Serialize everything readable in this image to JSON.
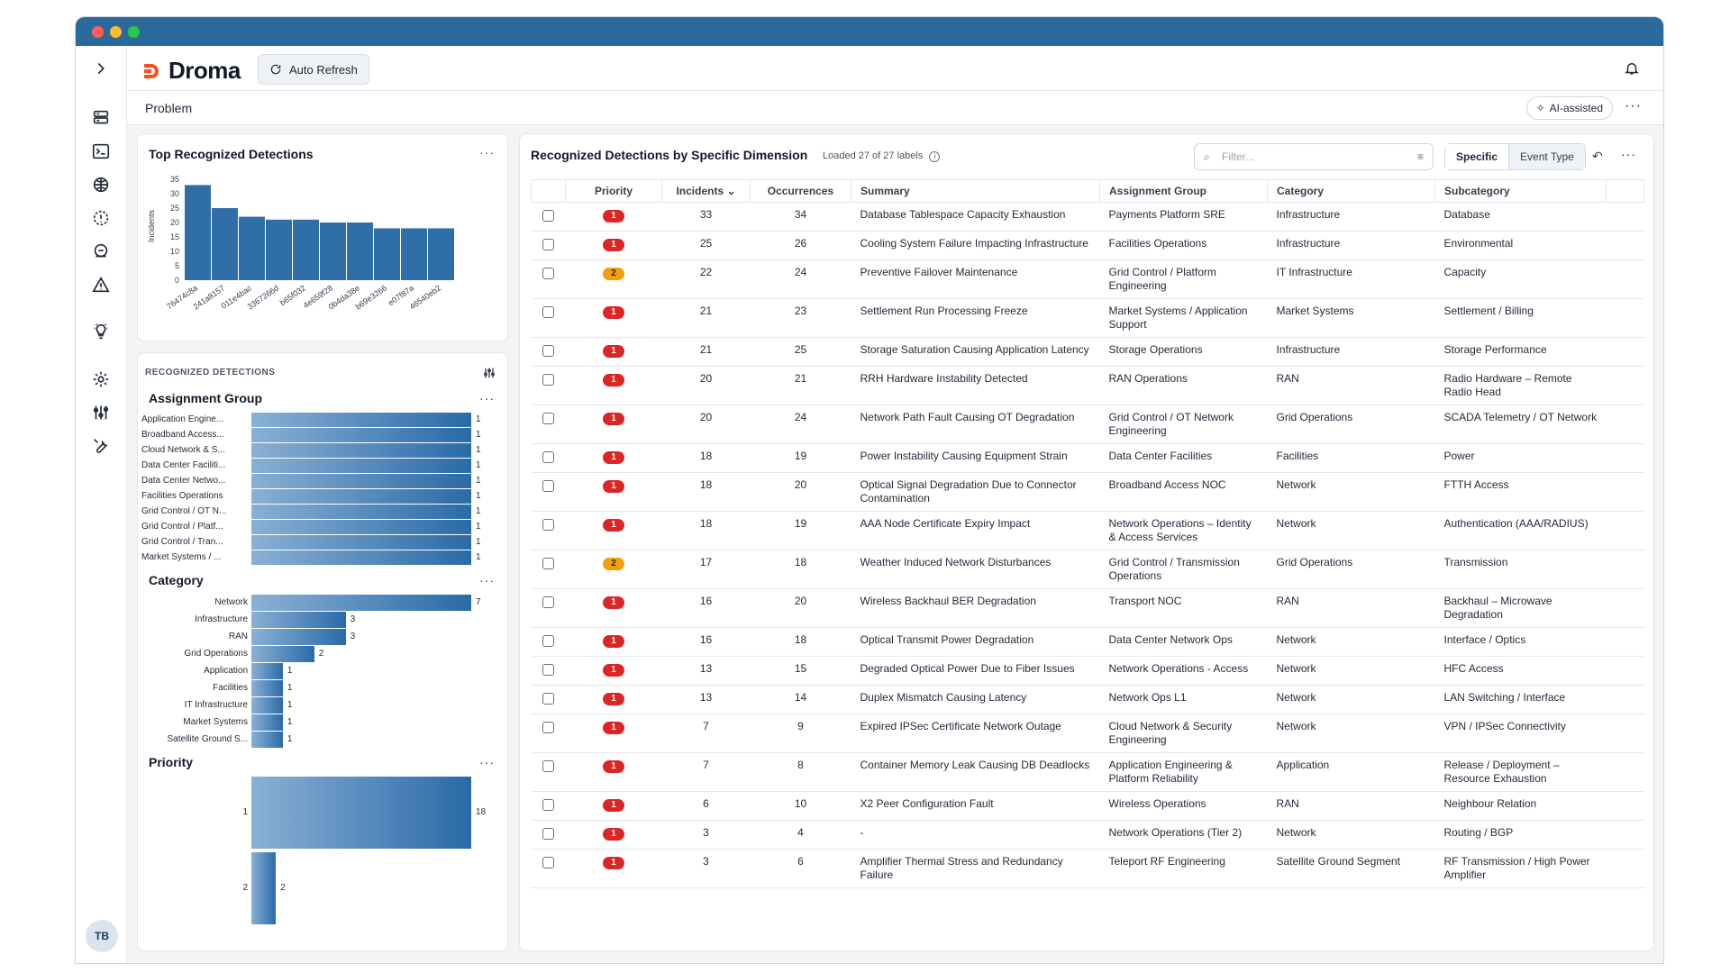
{
  "app": {
    "name": "Droma",
    "auto_refresh": "Auto Refresh",
    "breadcrumb": "Problem",
    "ai_assisted": "AI-assisted",
    "avatar_initials": "TB"
  },
  "top_chart": {
    "title": "Top Recognized Detections",
    "chart_data": {
      "type": "bar",
      "ylabel": "Incidents",
      "ylim": [
        0,
        35
      ],
      "yticks": [
        0,
        5,
        10,
        15,
        20,
        25,
        30,
        35
      ],
      "categories": [
        "76474c8a",
        "241a8157",
        "011e4bac",
        "3367266d",
        "b65f032",
        "4e659f28",
        "0b4da38e",
        "b69e3266",
        "e07f87a",
        "46540eb2"
      ],
      "values": [
        33,
        25,
        22,
        21,
        21,
        20,
        20,
        18,
        18,
        18
      ]
    }
  },
  "recognized": {
    "header": "RECOGNIZED DETECTIONS",
    "assignment_group": {
      "title": "Assignment Group",
      "chart_data": {
        "type": "bar",
        "categories": [
          "Application Engine...",
          "Broadband Access...",
          "Cloud Network & S...",
          "Data Center Faciliti...",
          "Data Center Netwo...",
          "Facilities Operations",
          "Grid Control / OT N...",
          "Grid Control / Platf...",
          "Grid Control / Tran...",
          "Market Systems / ..."
        ],
        "values": [
          1,
          1,
          1,
          1,
          1,
          1,
          1,
          1,
          1,
          1
        ]
      }
    },
    "category": {
      "title": "Category",
      "chart_data": {
        "type": "bar",
        "categories": [
          "Network",
          "Infrastructure",
          "RAN",
          "Grid Operations",
          "Application",
          "Facilities",
          "IT Infrastructure",
          "Market Systems",
          "Satellite Ground S..."
        ],
        "values": [
          7,
          3,
          3,
          2,
          1,
          1,
          1,
          1,
          1
        ]
      }
    },
    "priority": {
      "title": "Priority",
      "chart_data": {
        "type": "bar",
        "categories": [
          "1",
          "2"
        ],
        "values": [
          18,
          2
        ]
      }
    }
  },
  "table": {
    "title": "Recognized Detections by Specific Dimension",
    "subtitle": "Loaded 27 of 27 labels",
    "filter_placeholder": "Filter...",
    "toggle": [
      "Specific",
      "Event Type"
    ],
    "columns": [
      "Priority",
      "Incidents",
      "Occurrences",
      "Summary",
      "Assignment Group",
      "Category",
      "Subcategory"
    ],
    "rows": [
      {
        "priority": "1",
        "incidents": "33",
        "occurrences": "34",
        "summary": "Database Tablespace Capacity Exhaustion",
        "group": "Payments Platform SRE",
        "category": "Infrastructure",
        "subcategory": "Database"
      },
      {
        "priority": "1",
        "incidents": "25",
        "occurrences": "26",
        "summary": "Cooling System Failure Impacting Infrastructure",
        "group": "Facilities Operations",
        "category": "Infrastructure",
        "subcategory": "Environmental"
      },
      {
        "priority": "2",
        "incidents": "22",
        "occurrences": "24",
        "summary": "Preventive Failover Maintenance",
        "group": "Grid Control / Platform Engineering",
        "category": "IT Infrastructure",
        "subcategory": "Capacity"
      },
      {
        "priority": "1",
        "incidents": "21",
        "occurrences": "23",
        "summary": "Settlement Run Processing Freeze",
        "group": "Market Systems / Application Support",
        "category": "Market Systems",
        "subcategory": "Settlement / Billing"
      },
      {
        "priority": "1",
        "incidents": "21",
        "occurrences": "25",
        "summary": "Storage Saturation Causing Application Latency",
        "group": "Storage Operations",
        "category": "Infrastructure",
        "subcategory": "Storage Performance"
      },
      {
        "priority": "1",
        "incidents": "20",
        "occurrences": "21",
        "summary": "RRH Hardware Instability Detected",
        "group": "RAN Operations",
        "category": "RAN",
        "subcategory": "Radio Hardware – Remote Radio Head"
      },
      {
        "priority": "1",
        "incidents": "20",
        "occurrences": "24",
        "summary": "Network Path Fault Causing OT Degradation",
        "group": "Grid Control / OT Network Engineering",
        "category": "Grid Operations",
        "subcategory": "SCADA Telemetry / OT Network"
      },
      {
        "priority": "1",
        "incidents": "18",
        "occurrences": "19",
        "summary": "Power Instability Causing Equipment Strain",
        "group": "Data Center Facilities",
        "category": "Facilities",
        "subcategory": "Power"
      },
      {
        "priority": "1",
        "incidents": "18",
        "occurrences": "20",
        "summary": "Optical Signal Degradation Due to Connector Contamination",
        "group": "Broadband Access NOC",
        "category": "Network",
        "subcategory": "FTTH Access"
      },
      {
        "priority": "1",
        "incidents": "18",
        "occurrences": "19",
        "summary": "AAA Node Certificate Expiry Impact",
        "group": "Network Operations – Identity & Access Services",
        "category": "Network",
        "subcategory": "Authentication (AAA/RADIUS)"
      },
      {
        "priority": "2",
        "incidents": "17",
        "occurrences": "18",
        "summary": "Weather Induced Network Disturbances",
        "group": "Grid Control / Transmission Operations",
        "category": "Grid Operations",
        "subcategory": "Transmission"
      },
      {
        "priority": "1",
        "incidents": "16",
        "occurrences": "20",
        "summary": "Wireless Backhaul BER Degradation",
        "group": "Transport NOC",
        "category": "RAN",
        "subcategory": "Backhaul – Microwave Degradation"
      },
      {
        "priority": "1",
        "incidents": "16",
        "occurrences": "18",
        "summary": "Optical Transmit Power Degradation",
        "group": "Data Center Network Ops",
        "category": "Network",
        "subcategory": "Interface / Optics"
      },
      {
        "priority": "1",
        "incidents": "13",
        "occurrences": "15",
        "summary": "Degraded Optical Power Due to Fiber Issues",
        "group": "Network Operations - Access",
        "category": "Network",
        "subcategory": "HFC Access"
      },
      {
        "priority": "1",
        "incidents": "13",
        "occurrences": "14",
        "summary": "Duplex Mismatch Causing Latency",
        "group": "Network Ops L1",
        "category": "Network",
        "subcategory": "LAN Switching / Interface"
      },
      {
        "priority": "1",
        "incidents": "7",
        "occurrences": "9",
        "summary": "Expired IPSec Certificate Network Outage",
        "group": "Cloud Network & Security Engineering",
        "category": "Network",
        "subcategory": "VPN / IPSec Connectivity"
      },
      {
        "priority": "1",
        "incidents": "7",
        "occurrences": "8",
        "summary": "Container Memory Leak Causing DB Deadlocks",
        "group": "Application Engineering & Platform Reliability",
        "category": "Application",
        "subcategory": "Release / Deployment – Resource Exhaustion"
      },
      {
        "priority": "1",
        "incidents": "6",
        "occurrences": "10",
        "summary": "X2 Peer Configuration Fault",
        "group": "Wireless Operations",
        "category": "RAN",
        "subcategory": "Neighbour Relation"
      },
      {
        "priority": "1",
        "incidents": "3",
        "occurrences": "4",
        "summary": "-",
        "group": "Network Operations (Tier 2)",
        "category": "Network",
        "subcategory": "Routing / BGP"
      },
      {
        "priority": "1",
        "incidents": "3",
        "occurrences": "6",
        "summary": "Amplifier Thermal Stress and Redundancy Failure",
        "group": "Teleport RF Engineering",
        "category": "Satellite Ground Segment",
        "subcategory": "RF Transmission / High Power Amplifier"
      }
    ]
  }
}
